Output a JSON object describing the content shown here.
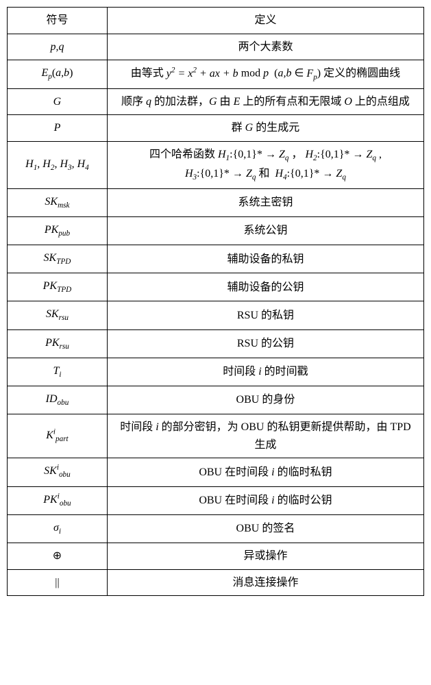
{
  "table": {
    "border_color": "#000000",
    "background_color": "#ffffff",
    "text_color": "#000000",
    "font_size_body": 16,
    "font_size_header": 16,
    "symbol_col_width_pct": 24,
    "def_col_width_pct": 76,
    "header": {
      "symbol": "符号",
      "definition": "定义"
    },
    "rows": [
      {
        "symbol_html": "<span class=\"math\">p,q</span>",
        "definition_html": "两个大素数"
      },
      {
        "symbol_html": "<span class=\"math\">E<sub>p</sub></span><span class=\"upright\">(</span><span class=\"math\">a,b</span><span class=\"upright\">)</span>",
        "definition_html": "由等式 <span class=\"math\">y<sup>2</sup> = x<sup>2</sup> + ax + b</span> <span class=\"upright\">mod</span> <span class=\"math\">p</span> &nbsp;(<span class=\"math\">a,b</span> ∈ <span class=\"math\">F<sub>p</sub></span>) 定义的椭圆曲线"
      },
      {
        "symbol_html": "<span class=\"math\">G</span>",
        "definition_html": "顺序 <span class=\"math\">q</span> 的加法群，<span class=\"math\">G</span> 由 <span class=\"math\">E</span> 上的所有点和无限域 <span class=\"math\">O</span> 上的点组成"
      },
      {
        "symbol_html": "<span class=\"math\">P</span>",
        "definition_html": "群 <span class=\"math\">G</span> 的生成元"
      },
      {
        "symbol_html": "<span class=\"math\">H</span><sub>1</sub>, <span class=\"math\">H</span><sub>2</sub>, <span class=\"math\">H</span><sub>3</sub>, <span class=\"math\">H</span><sub>4</sub>",
        "definition_html": "四个哈希函数 <span class=\"math\">H</span><sub>1</sub>:{0,1}* → <span class=\"math\">Z<sub>q</sub></span> ，&nbsp;<span class=\"math\">H</span><sub>2</sub>:{0,1}* → <span class=\"math\">Z<sub>q</sub></span> ,<br><span class=\"math\">H</span><sub>3</sub>:{0,1}* → <span class=\"math\">Z<sub>q</sub></span> 和&nbsp; <span class=\"math\">H</span><sub>4</sub>:{0,1}* → <span class=\"math\">Z<sub>q</sub></span>"
      },
      {
        "symbol_html": "<span class=\"math\">SK<sub>msk</sub></span>",
        "definition_html": "系统主密钥"
      },
      {
        "symbol_html": "<span class=\"math\">PK<sub>pub</sub></span>",
        "definition_html": "系统公钥"
      },
      {
        "symbol_html": "<span class=\"math\">SK<sub>TPD</sub></span>",
        "definition_html": "辅助设备的私钥"
      },
      {
        "symbol_html": "<span class=\"math\">PK<sub>TPD</sub></span>",
        "definition_html": "辅助设备的公钥"
      },
      {
        "symbol_html": "<span class=\"math\">SK<sub>rsu</sub></span>",
        "definition_html": "RSU 的私钥"
      },
      {
        "symbol_html": "<span class=\"math\">PK<sub>rsu</sub></span>",
        "definition_html": "RSU 的公钥"
      },
      {
        "symbol_html": "<span class=\"math\">T<sub>i</sub></span>",
        "definition_html": "时间段 <span class=\"math\">i</span> 的时间戳"
      },
      {
        "symbol_html": "<span class=\"math\">ID<sub>obu</sub></span>",
        "definition_html": "OBU 的身份"
      },
      {
        "symbol_html": "<span class=\"math\">K<sup>i</sup><sub>part</sub></span>",
        "definition_html": "时间段 <span class=\"math\">i</span> 的部分密钥，为 OBU 的私钥更新提供帮助，由 TPD 生成"
      },
      {
        "symbol_html": "<span class=\"math\">SK<sup>i</sup><sub>obu</sub></span>",
        "definition_html": "OBU 在时间段 <span class=\"math\">i</span> 的临时私钥"
      },
      {
        "symbol_html": "<span class=\"math\">PK<sup>i</sup><sub>obu</sub></span>",
        "definition_html": "OBU 在时间段 <span class=\"math\">i</span> 的临时公钥"
      },
      {
        "symbol_html": "<span class=\"math\">σ<sub>i</sub></span>",
        "definition_html": "OBU 的签名"
      },
      {
        "symbol_html": "⊕",
        "definition_html": "异或操作"
      },
      {
        "symbol_html": "||",
        "definition_html": "消息连接操作"
      }
    ]
  }
}
